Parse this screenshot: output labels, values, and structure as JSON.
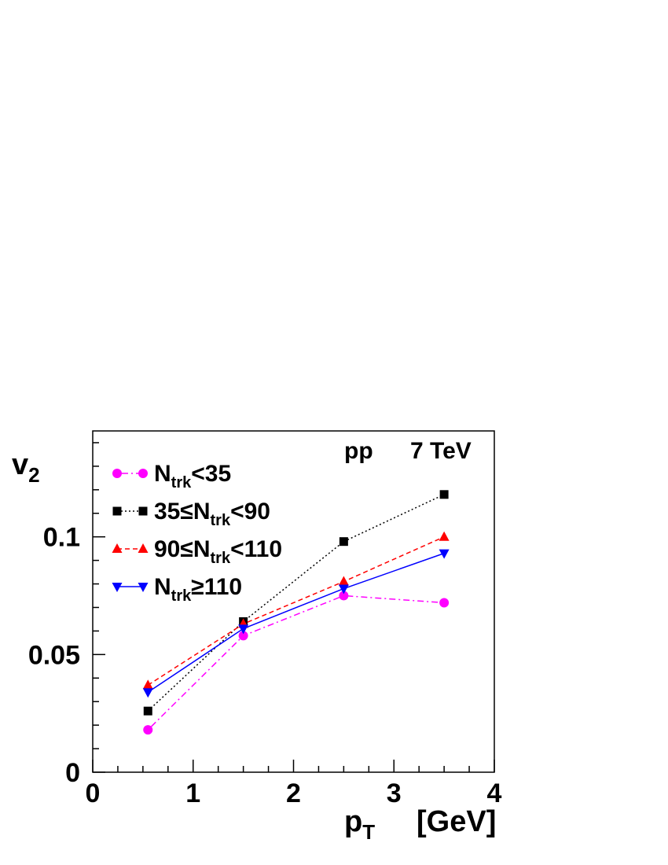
{
  "chart_data": {
    "type": "line",
    "xlim": [
      0,
      4
    ],
    "ylim": [
      0,
      0.145
    ],
    "x_ticks": [
      0,
      1,
      2,
      3,
      4
    ],
    "y_ticks": [
      0,
      0.05,
      0.1
    ],
    "x_tick_labels": [
      "0",
      "1",
      "2",
      "3",
      "4"
    ],
    "y_tick_labels": [
      "0",
      "0.05",
      "0.1"
    ],
    "xlabel": {
      "main": "p",
      "sub": "T",
      "unit": "[GeV]"
    },
    "ylabel": {
      "main": "v",
      "sub": "2"
    },
    "annotations": {
      "system": "pp",
      "energy": "7 TeV"
    },
    "legend_placement": "top-left",
    "grid": false,
    "series": [
      {
        "name": {
          "pre": "",
          "main": "N",
          "sub": "trk",
          "post": "<35"
        },
        "color": "#ff00ff",
        "marker": "circle",
        "dash": "2,4,8,4",
        "x": [
          0.55,
          1.5,
          2.5,
          3.5
        ],
        "y": [
          0.018,
          0.058,
          0.075,
          0.072
        ]
      },
      {
        "name": {
          "pre": "35≤",
          "main": "N",
          "sub": "trk",
          "post": "<90"
        },
        "color": "#000000",
        "marker": "square",
        "dash": "2,3",
        "x": [
          0.55,
          1.5,
          2.5,
          3.5
        ],
        "y": [
          0.026,
          0.064,
          0.098,
          0.118
        ]
      },
      {
        "name": {
          "pre": "90≤",
          "main": "N",
          "sub": "trk",
          "post": "<110"
        },
        "color": "#ff0000",
        "marker": "triangle-up",
        "dash": "6,4",
        "x": [
          0.55,
          1.5,
          2.5,
          3.5
        ],
        "y": [
          0.037,
          0.063,
          0.081,
          0.1
        ]
      },
      {
        "name": {
          "pre": "",
          "main": "N",
          "sub": "trk",
          "post": "≥110"
        },
        "color": "#0000ff",
        "marker": "triangle-down",
        "dash": "",
        "x": [
          0.55,
          1.5,
          2.5,
          3.5
        ],
        "y": [
          0.034,
          0.061,
          0.078,
          0.093
        ]
      }
    ]
  }
}
